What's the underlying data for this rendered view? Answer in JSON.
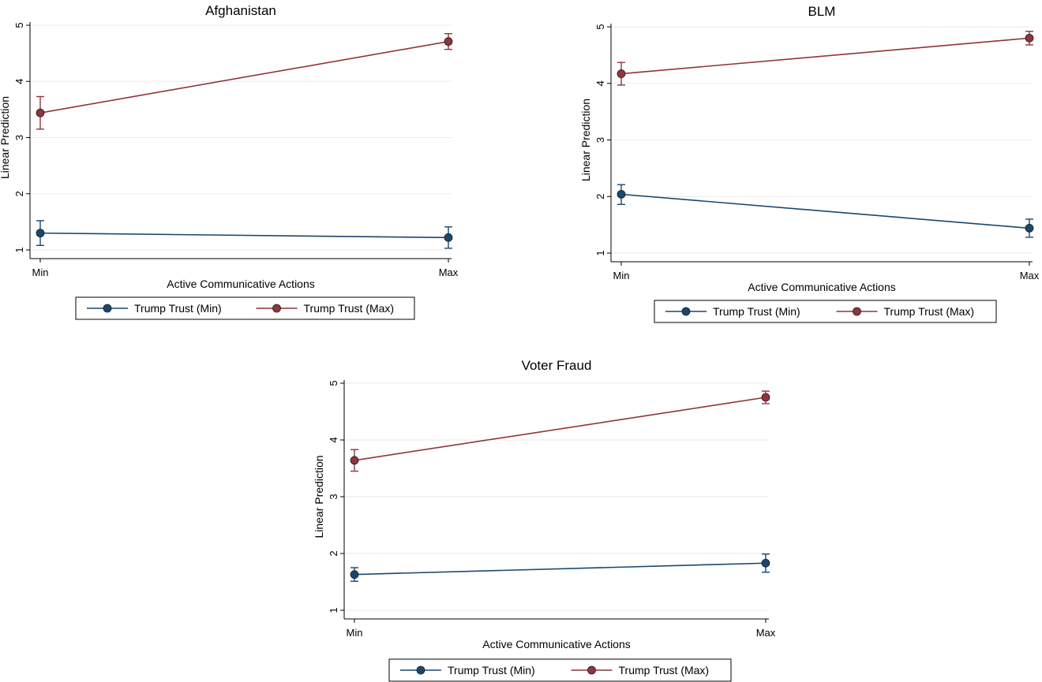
{
  "colors": {
    "series_min": "#1a476f",
    "series_max": "#90353b",
    "grid": "#eaeaea",
    "axis": "#000000"
  },
  "chart_data": [
    {
      "type": "line",
      "title": "Afghanistan",
      "xlabel": "Active Communicative Actions",
      "ylabel": "Linear Prediction",
      "categories": [
        "Min",
        "Max"
      ],
      "ylim": [
        1,
        5
      ],
      "yticks": [
        "1",
        "2",
        "3",
        "4",
        "5"
      ],
      "grid": true,
      "legend_position": "bottom",
      "series": [
        {
          "name": "Trump Trust (Min)",
          "values": [
            1.3,
            1.22
          ],
          "ci_low": [
            1.08,
            1.03
          ],
          "ci_high": [
            1.52,
            1.41
          ]
        },
        {
          "name": "Trump Trust (Max)",
          "values": [
            3.44,
            4.71
          ],
          "ci_low": [
            3.15,
            4.57
          ],
          "ci_high": [
            3.73,
            4.85
          ]
        }
      ]
    },
    {
      "type": "line",
      "title": "BLM",
      "xlabel": "Active Communicative Actions",
      "ylabel": "Linear Prediction",
      "categories": [
        "Min",
        "Max"
      ],
      "ylim": [
        1,
        5
      ],
      "yticks": [
        "1",
        "2",
        "3",
        "4",
        "5"
      ],
      "grid": true,
      "legend_position": "bottom",
      "series": [
        {
          "name": "Trump Trust (Min)",
          "values": [
            2.04,
            1.44
          ],
          "ci_low": [
            1.86,
            1.28
          ],
          "ci_high": [
            2.21,
            1.6
          ]
        },
        {
          "name": "Trump Trust (Max)",
          "values": [
            4.17,
            4.8
          ],
          "ci_low": [
            3.97,
            4.68
          ],
          "ci_high": [
            4.37,
            4.92
          ]
        }
      ]
    },
    {
      "type": "line",
      "title": "Voter Fraud",
      "xlabel": "Active Communicative Actions",
      "ylabel": "Linear Prediction",
      "categories": [
        "Min",
        "Max"
      ],
      "ylim": [
        1,
        5
      ],
      "yticks": [
        "1",
        "2",
        "3",
        "4",
        "5"
      ],
      "grid": true,
      "legend_position": "bottom",
      "series": [
        {
          "name": "Trump Trust (Min)",
          "values": [
            1.63,
            1.83
          ],
          "ci_low": [
            1.51,
            1.67
          ],
          "ci_high": [
            1.75,
            1.99
          ]
        },
        {
          "name": "Trump Trust (Max)",
          "values": [
            3.64,
            4.75
          ],
          "ci_low": [
            3.45,
            4.64
          ],
          "ci_high": [
            3.83,
            4.86
          ]
        }
      ]
    }
  ]
}
